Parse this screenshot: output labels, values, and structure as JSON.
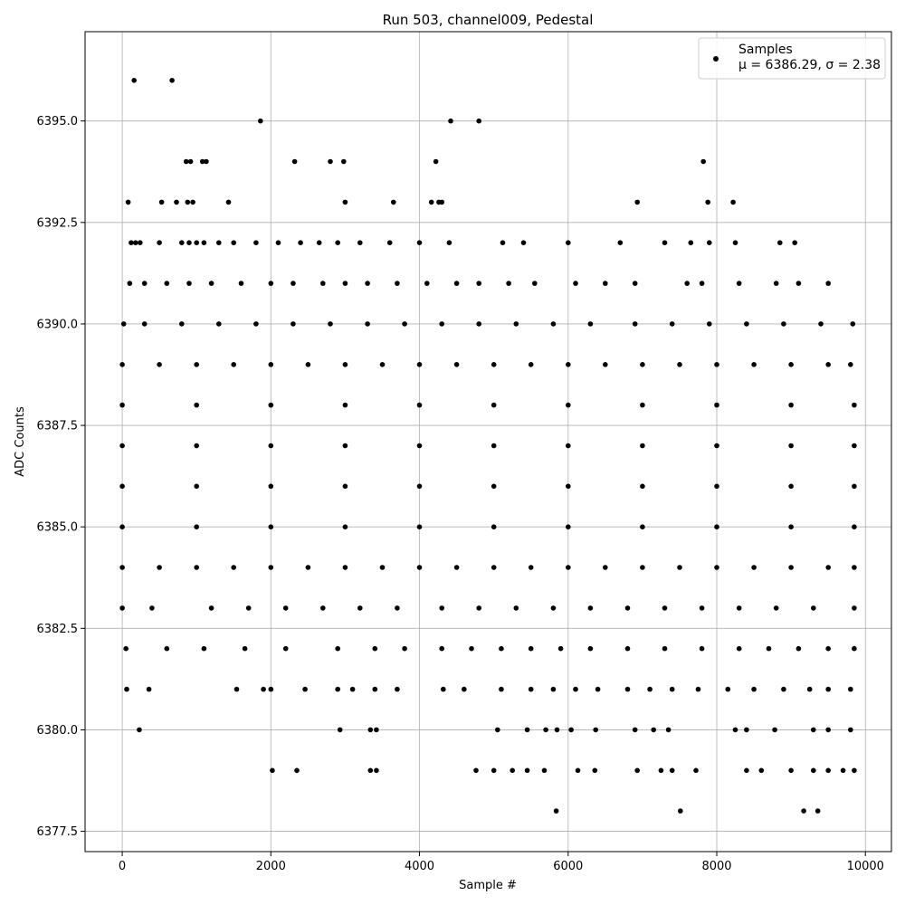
{
  "chart_data": {
    "type": "scatter",
    "title": "Run 503, channel009, Pedestal",
    "xlabel": "Sample #",
    "ylabel": "ADC Counts",
    "xlim": [
      -500,
      10350
    ],
    "ylim": [
      6377.0,
      6397.2
    ],
    "xticks": [
      0,
      2000,
      4000,
      6000,
      8000,
      10000
    ],
    "xtick_labels": [
      "0",
      "2000",
      "4000",
      "6000",
      "8000",
      "10000"
    ],
    "yticks": [
      6377.5,
      6380.0,
      6382.5,
      6385.0,
      6387.5,
      6390.0,
      6392.5,
      6395.0
    ],
    "ytick_labels": [
      "6377.5",
      "6380.0",
      "6382.5",
      "6385.0",
      "6387.5",
      "6390.0",
      "6392.5",
      "6395.0"
    ],
    "grid": true,
    "legend": {
      "placement": "top-right",
      "label_line1": "Samples",
      "label_line2": "μ = 6386.29, σ = 2.38"
    },
    "marker_color": "#000000",
    "n_samples": 9850,
    "series": [
      {
        "name": "Samples",
        "points": [
          [
            160,
            6396
          ],
          [
            670,
            6396
          ],
          [
            1860,
            6395
          ],
          [
            4420,
            6395
          ],
          [
            4800,
            6395
          ],
          [
            860,
            6394
          ],
          [
            920,
            6394
          ],
          [
            1080,
            6394
          ],
          [
            1130,
            6394
          ],
          [
            2320,
            6394
          ],
          [
            2800,
            6394
          ],
          [
            2980,
            6394
          ],
          [
            4220,
            6394
          ],
          [
            7820,
            6394
          ],
          [
            80,
            6393
          ],
          [
            530,
            6393
          ],
          [
            730,
            6393
          ],
          [
            880,
            6393
          ],
          [
            950,
            6393
          ],
          [
            1430,
            6393
          ],
          [
            3000,
            6393
          ],
          [
            3650,
            6393
          ],
          [
            4160,
            6393
          ],
          [
            4260,
            6393
          ],
          [
            4300,
            6393
          ],
          [
            6930,
            6393
          ],
          [
            7880,
            6393
          ],
          [
            8220,
            6393
          ],
          [
            120,
            6392
          ],
          [
            180,
            6392
          ],
          [
            240,
            6392
          ],
          [
            500,
            6392
          ],
          [
            800,
            6392
          ],
          [
            900,
            6392
          ],
          [
            1000,
            6392
          ],
          [
            1100,
            6392
          ],
          [
            1300,
            6392
          ],
          [
            1500,
            6392
          ],
          [
            1800,
            6392
          ],
          [
            2100,
            6392
          ],
          [
            2400,
            6392
          ],
          [
            2650,
            6392
          ],
          [
            2900,
            6392
          ],
          [
            3200,
            6392
          ],
          [
            3600,
            6392
          ],
          [
            4000,
            6392
          ],
          [
            4400,
            6392
          ],
          [
            5120,
            6392
          ],
          [
            5400,
            6392
          ],
          [
            6000,
            6392
          ],
          [
            6700,
            6392
          ],
          [
            7300,
            6392
          ],
          [
            7650,
            6392
          ],
          [
            7900,
            6392
          ],
          [
            8250,
            6392
          ],
          [
            8850,
            6392
          ],
          [
            9050,
            6392
          ],
          [
            100,
            6391
          ],
          [
            300,
            6391
          ],
          [
            600,
            6391
          ],
          [
            900,
            6391
          ],
          [
            1200,
            6391
          ],
          [
            1600,
            6391
          ],
          [
            2000,
            6391
          ],
          [
            2300,
            6391
          ],
          [
            2700,
            6391
          ],
          [
            3000,
            6391
          ],
          [
            3300,
            6391
          ],
          [
            3700,
            6391
          ],
          [
            4100,
            6391
          ],
          [
            4500,
            6391
          ],
          [
            4800,
            6391
          ],
          [
            5200,
            6391
          ],
          [
            5550,
            6391
          ],
          [
            6100,
            6391
          ],
          [
            6500,
            6391
          ],
          [
            6900,
            6391
          ],
          [
            7600,
            6391
          ],
          [
            7800,
            6391
          ],
          [
            8300,
            6391
          ],
          [
            8800,
            6391
          ],
          [
            9100,
            6391
          ],
          [
            9500,
            6391
          ],
          [
            20,
            6390
          ],
          [
            300,
            6390
          ],
          [
            800,
            6390
          ],
          [
            1300,
            6390
          ],
          [
            1800,
            6390
          ],
          [
            2300,
            6390
          ],
          [
            2800,
            6390
          ],
          [
            3300,
            6390
          ],
          [
            3800,
            6390
          ],
          [
            4300,
            6390
          ],
          [
            4800,
            6390
          ],
          [
            5300,
            6390
          ],
          [
            5800,
            6390
          ],
          [
            6300,
            6390
          ],
          [
            6900,
            6390
          ],
          [
            7400,
            6390
          ],
          [
            7900,
            6390
          ],
          [
            8400,
            6390
          ],
          [
            8900,
            6390
          ],
          [
            9400,
            6390
          ],
          [
            9830,
            6390
          ],
          [
            0,
            6389
          ],
          [
            500,
            6389
          ],
          [
            1000,
            6389
          ],
          [
            1500,
            6389
          ],
          [
            2000,
            6389
          ],
          [
            2500,
            6389
          ],
          [
            3000,
            6389
          ],
          [
            3500,
            6389
          ],
          [
            4000,
            6389
          ],
          [
            4500,
            6389
          ],
          [
            5000,
            6389
          ],
          [
            5500,
            6389
          ],
          [
            6000,
            6389
          ],
          [
            6500,
            6389
          ],
          [
            7000,
            6389
          ],
          [
            7500,
            6389
          ],
          [
            8000,
            6389
          ],
          [
            8500,
            6389
          ],
          [
            9000,
            6389
          ],
          [
            9500,
            6389
          ],
          [
            9800,
            6389
          ],
          [
            0,
            6388
          ],
          [
            1000,
            6388
          ],
          [
            2000,
            6388
          ],
          [
            3000,
            6388
          ],
          [
            4000,
            6388
          ],
          [
            5000,
            6388
          ],
          [
            6000,
            6388
          ],
          [
            7000,
            6388
          ],
          [
            8000,
            6388
          ],
          [
            9000,
            6388
          ],
          [
            9850,
            6388
          ],
          [
            0,
            6387
          ],
          [
            1000,
            6387
          ],
          [
            2000,
            6387
          ],
          [
            3000,
            6387
          ],
          [
            4000,
            6387
          ],
          [
            5000,
            6387
          ],
          [
            6000,
            6387
          ],
          [
            7000,
            6387
          ],
          [
            8000,
            6387
          ],
          [
            9000,
            6387
          ],
          [
            9850,
            6387
          ],
          [
            0,
            6386
          ],
          [
            1000,
            6386
          ],
          [
            2000,
            6386
          ],
          [
            3000,
            6386
          ],
          [
            4000,
            6386
          ],
          [
            5000,
            6386
          ],
          [
            6000,
            6386
          ],
          [
            7000,
            6386
          ],
          [
            8000,
            6386
          ],
          [
            9000,
            6386
          ],
          [
            9850,
            6386
          ],
          [
            0,
            6385
          ],
          [
            1000,
            6385
          ],
          [
            2000,
            6385
          ],
          [
            3000,
            6385
          ],
          [
            4000,
            6385
          ],
          [
            5000,
            6385
          ],
          [
            6000,
            6385
          ],
          [
            7000,
            6385
          ],
          [
            8000,
            6385
          ],
          [
            9000,
            6385
          ],
          [
            9850,
            6385
          ],
          [
            0,
            6384
          ],
          [
            500,
            6384
          ],
          [
            1000,
            6384
          ],
          [
            1500,
            6384
          ],
          [
            2000,
            6384
          ],
          [
            2500,
            6384
          ],
          [
            3000,
            6384
          ],
          [
            3500,
            6384
          ],
          [
            4000,
            6384
          ],
          [
            4500,
            6384
          ],
          [
            5000,
            6384
          ],
          [
            5500,
            6384
          ],
          [
            6000,
            6384
          ],
          [
            6500,
            6384
          ],
          [
            7000,
            6384
          ],
          [
            7500,
            6384
          ],
          [
            8000,
            6384
          ],
          [
            8500,
            6384
          ],
          [
            9000,
            6384
          ],
          [
            9500,
            6384
          ],
          [
            9850,
            6384
          ],
          [
            0,
            6383
          ],
          [
            400,
            6383
          ],
          [
            1200,
            6383
          ],
          [
            1700,
            6383
          ],
          [
            2200,
            6383
          ],
          [
            2700,
            6383
          ],
          [
            3200,
            6383
          ],
          [
            3700,
            6383
          ],
          [
            4300,
            6383
          ],
          [
            4800,
            6383
          ],
          [
            5300,
            6383
          ],
          [
            5800,
            6383
          ],
          [
            6300,
            6383
          ],
          [
            6800,
            6383
          ],
          [
            7300,
            6383
          ],
          [
            7800,
            6383
          ],
          [
            8300,
            6383
          ],
          [
            8800,
            6383
          ],
          [
            9300,
            6383
          ],
          [
            9850,
            6383
          ],
          [
            50,
            6382
          ],
          [
            600,
            6382
          ],
          [
            1100,
            6382
          ],
          [
            1650,
            6382
          ],
          [
            2200,
            6382
          ],
          [
            2900,
            6382
          ],
          [
            3400,
            6382
          ],
          [
            3800,
            6382
          ],
          [
            4300,
            6382
          ],
          [
            4700,
            6382
          ],
          [
            5100,
            6382
          ],
          [
            5500,
            6382
          ],
          [
            5900,
            6382
          ],
          [
            6300,
            6382
          ],
          [
            6800,
            6382
          ],
          [
            7300,
            6382
          ],
          [
            7800,
            6382
          ],
          [
            8300,
            6382
          ],
          [
            8700,
            6382
          ],
          [
            9100,
            6382
          ],
          [
            9500,
            6382
          ],
          [
            9850,
            6382
          ],
          [
            60,
            6381
          ],
          [
            360,
            6381
          ],
          [
            1540,
            6381
          ],
          [
            1900,
            6381
          ],
          [
            2000,
            6381
          ],
          [
            2460,
            6381
          ],
          [
            2900,
            6381
          ],
          [
            3100,
            6381
          ],
          [
            3400,
            6381
          ],
          [
            3700,
            6381
          ],
          [
            4320,
            6381
          ],
          [
            4600,
            6381
          ],
          [
            5100,
            6381
          ],
          [
            5500,
            6381
          ],
          [
            5800,
            6381
          ],
          [
            6100,
            6381
          ],
          [
            6400,
            6381
          ],
          [
            6800,
            6381
          ],
          [
            7100,
            6381
          ],
          [
            7400,
            6381
          ],
          [
            7750,
            6381
          ],
          [
            8150,
            6381
          ],
          [
            8500,
            6381
          ],
          [
            8900,
            6381
          ],
          [
            9250,
            6381
          ],
          [
            9500,
            6381
          ],
          [
            9800,
            6381
          ],
          [
            230,
            6380
          ],
          [
            2930,
            6380
          ],
          [
            3340,
            6380
          ],
          [
            3420,
            6380
          ],
          [
            5050,
            6380
          ],
          [
            5450,
            6380
          ],
          [
            5700,
            6380
          ],
          [
            5850,
            6380
          ],
          [
            6040,
            6380
          ],
          [
            6370,
            6380
          ],
          [
            6900,
            6380
          ],
          [
            7150,
            6380
          ],
          [
            7350,
            6380
          ],
          [
            8250,
            6380
          ],
          [
            8400,
            6380
          ],
          [
            8780,
            6380
          ],
          [
            9300,
            6380
          ],
          [
            9500,
            6380
          ],
          [
            9800,
            6380
          ],
          [
            2020,
            6379
          ],
          [
            2350,
            6379
          ],
          [
            3340,
            6379
          ],
          [
            3420,
            6379
          ],
          [
            4760,
            6379
          ],
          [
            5000,
            6379
          ],
          [
            5250,
            6379
          ],
          [
            5450,
            6379
          ],
          [
            5680,
            6379
          ],
          [
            6130,
            6379
          ],
          [
            6360,
            6379
          ],
          [
            6930,
            6379
          ],
          [
            7250,
            6379
          ],
          [
            7400,
            6379
          ],
          [
            7720,
            6379
          ],
          [
            8400,
            6379
          ],
          [
            8600,
            6379
          ],
          [
            9000,
            6379
          ],
          [
            9300,
            6379
          ],
          [
            9500,
            6379
          ],
          [
            9700,
            6379
          ],
          [
            9850,
            6379
          ],
          [
            5840,
            6378
          ],
          [
            7510,
            6378
          ],
          [
            9170,
            6378
          ],
          [
            9360,
            6378
          ]
        ]
      }
    ]
  }
}
